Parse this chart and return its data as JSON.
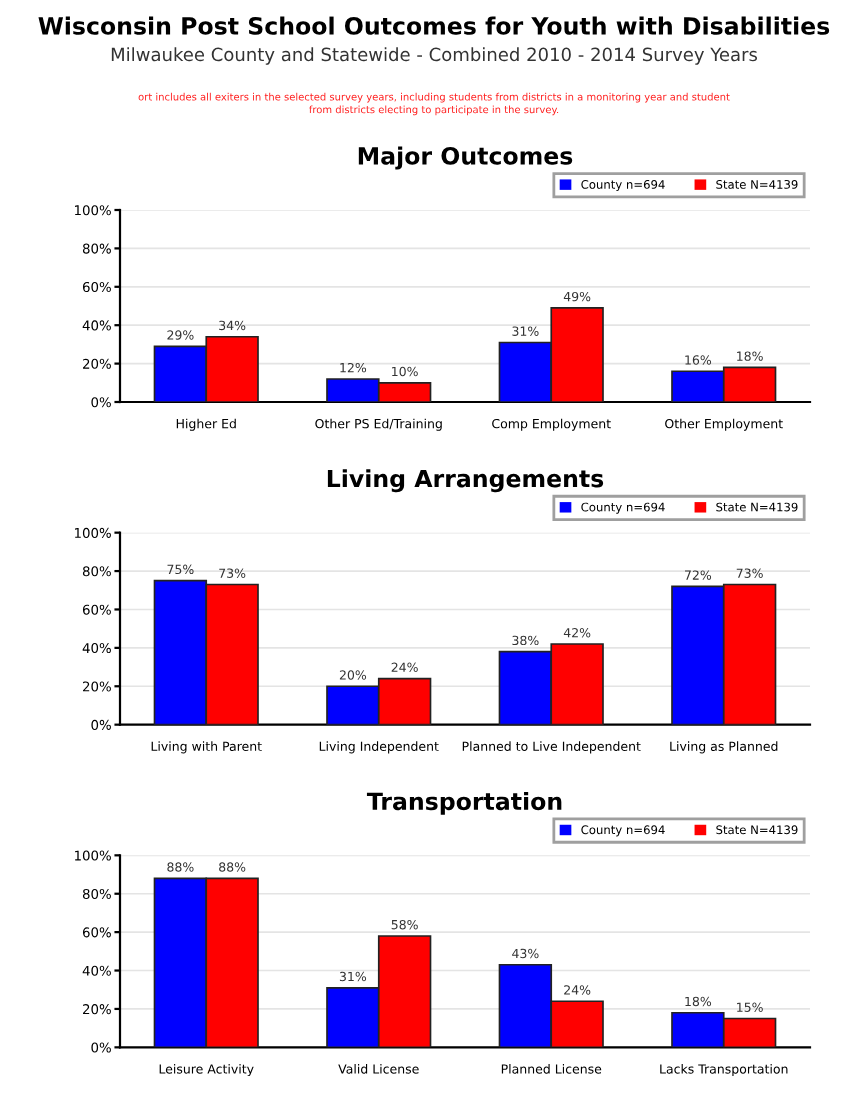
{
  "chart_data": [
    {
      "type": "other",
      "title": "Wisconsin Post School Outcomes for Youth with Disabilities",
      "subtitle": "Milwaukee County and Statewide - Combined 2010 - 2014 Survey Years",
      "annotations": [
        "ort includes all exiters in the selected survey years, including students from districts in a monitoring year and student\nfrom districts electing to participate in the survey."
      ]
    },
    {
      "type": "bar",
      "title": "Major Outcomes",
      "categories": [
        "Higher Ed",
        "Other PS Ed/Training",
        "Comp Employment",
        "Other Employment"
      ],
      "series": [
        {
          "name": "County n=694",
          "color": "#0000ff",
          "values": [
            29,
            12,
            31,
            16
          ],
          "value_labels": [
            "29%",
            "12%",
            "31%",
            "16%"
          ]
        },
        {
          "name": "State N=4139",
          "color": "#ff0000",
          "values": [
            34,
            10,
            49,
            18
          ],
          "value_labels": [
            "34%",
            "10%",
            "49%",
            "18%"
          ]
        }
      ],
      "ylim": [
        0,
        100
      ],
      "yticks": [
        {
          "value": 0,
          "label": "0%"
        },
        {
          "value": 20,
          "label": "20%"
        },
        {
          "value": 40,
          "label": "40%"
        },
        {
          "value": 60,
          "label": "60%"
        },
        {
          "value": 80,
          "label": "80%"
        },
        {
          "value": 100,
          "label": "100%"
        }
      ],
      "grid": "y",
      "legend": "top right"
    },
    {
      "type": "bar",
      "title": "Living Arrangements",
      "categories": [
        "Living with Parent",
        "Living Independent",
        "Planned to Live Independent",
        "Living as Planned"
      ],
      "series": [
        {
          "name": "County n=694",
          "color": "#0000ff",
          "values": [
            75,
            20,
            38,
            72
          ],
          "value_labels": [
            "75%",
            "20%",
            "38%",
            "72%"
          ]
        },
        {
          "name": "State N=4139",
          "color": "#ff0000",
          "values": [
            73,
            24,
            42,
            73
          ],
          "value_labels": [
            "73%",
            "24%",
            "42%",
            "73%"
          ]
        }
      ],
      "ylim": [
        0,
        100
      ],
      "yticks": [
        {
          "value": 0,
          "label": "0%"
        },
        {
          "value": 20,
          "label": "20%"
        },
        {
          "value": 40,
          "label": "40%"
        },
        {
          "value": 60,
          "label": "60%"
        },
        {
          "value": 80,
          "label": "80%"
        },
        {
          "value": 100,
          "label": "100%"
        }
      ],
      "grid": "y",
      "legend": "top right"
    },
    {
      "type": "bar",
      "title": "Transportation",
      "categories": [
        "Leisure Activity",
        "Valid License",
        "Planned License",
        "Lacks Transportation"
      ],
      "series": [
        {
          "name": "County n=694",
          "color": "#0000ff",
          "values": [
            88,
            31,
            43,
            18
          ],
          "value_labels": [
            "88%",
            "31%",
            "43%",
            "18%"
          ]
        },
        {
          "name": "State N=4139",
          "color": "#ff0000",
          "values": [
            88,
            58,
            24,
            15
          ],
          "value_labels": [
            "88%",
            "58%",
            "24%",
            "15%"
          ]
        }
      ],
      "ylim": [
        0,
        100
      ],
      "yticks": [
        {
          "value": 0,
          "label": "0%"
        },
        {
          "value": 20,
          "label": "20%"
        },
        {
          "value": 40,
          "label": "40%"
        },
        {
          "value": 60,
          "label": "60%"
        },
        {
          "value": 80,
          "label": "80%"
        },
        {
          "value": 100,
          "label": "100%"
        }
      ],
      "grid": "y",
      "legend": "top right"
    }
  ]
}
